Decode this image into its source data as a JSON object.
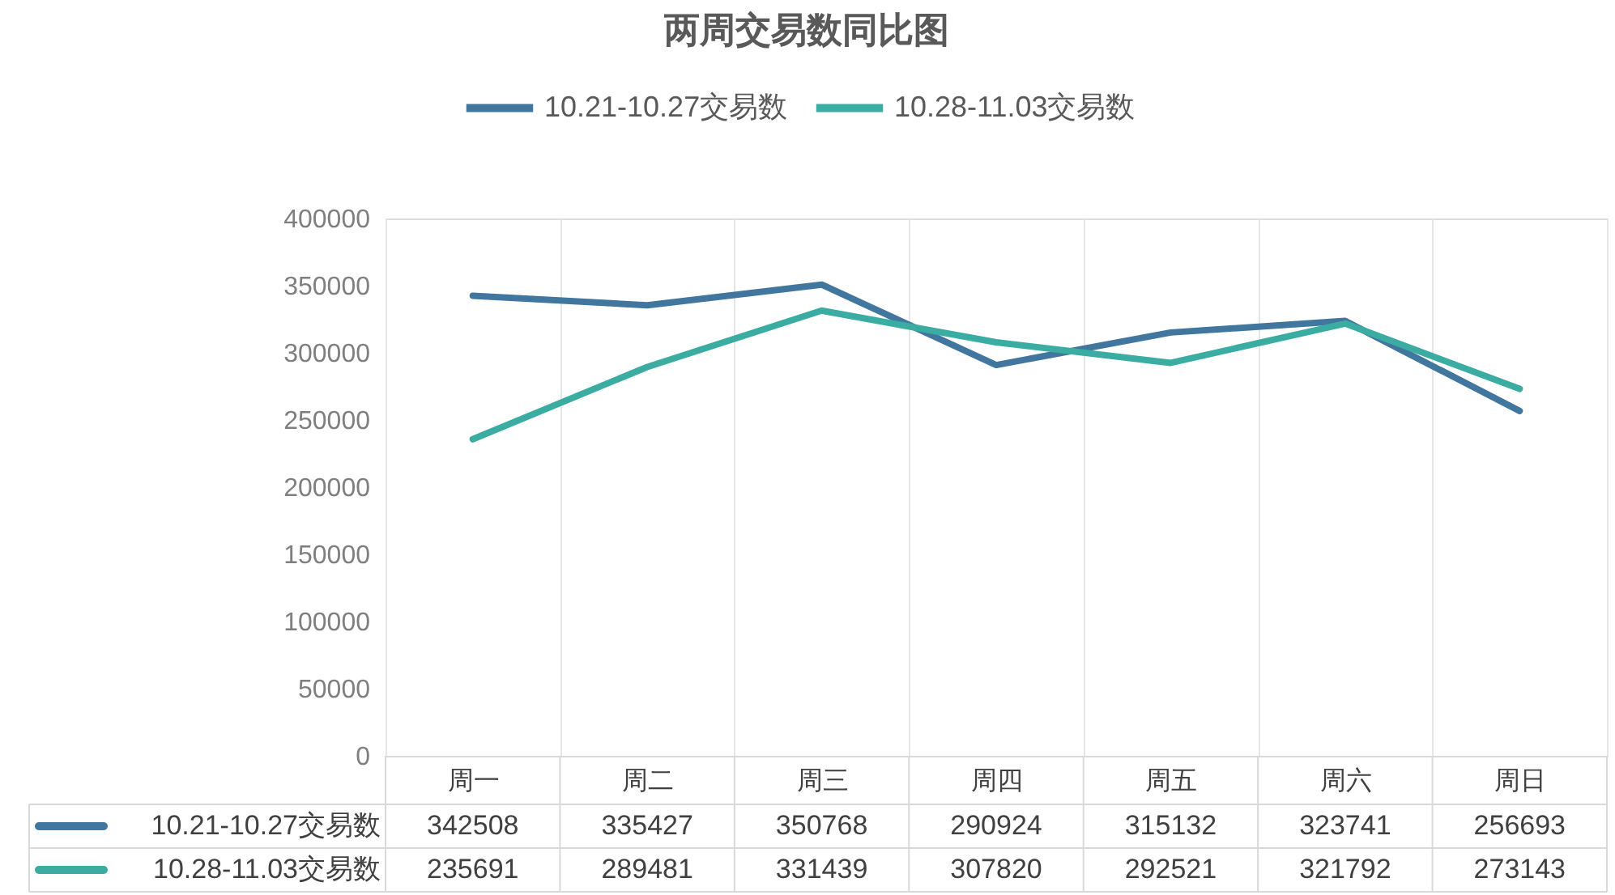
{
  "chart_data": {
    "type": "line",
    "title": "两周交易数同比图",
    "categories": [
      "周一",
      "周二",
      "周三",
      "周四",
      "周五",
      "周六",
      "周日"
    ],
    "series": [
      {
        "name": "10.21-10.27交易数",
        "color": "#41769f",
        "values": [
          342508,
          335427,
          350768,
          290924,
          315132,
          323741,
          256693
        ]
      },
      {
        "name": "10.28-11.03交易数",
        "color": "#3aaca2",
        "values": [
          235691,
          289481,
          331439,
          307820,
          292521,
          321792,
          273143
        ]
      }
    ],
    "ylim": [
      0,
      400000
    ],
    "yticks": [
      0,
      50000,
      100000,
      150000,
      200000,
      250000,
      300000,
      350000,
      400000
    ],
    "grid": "x",
    "legend": "top",
    "data_labels": true
  }
}
